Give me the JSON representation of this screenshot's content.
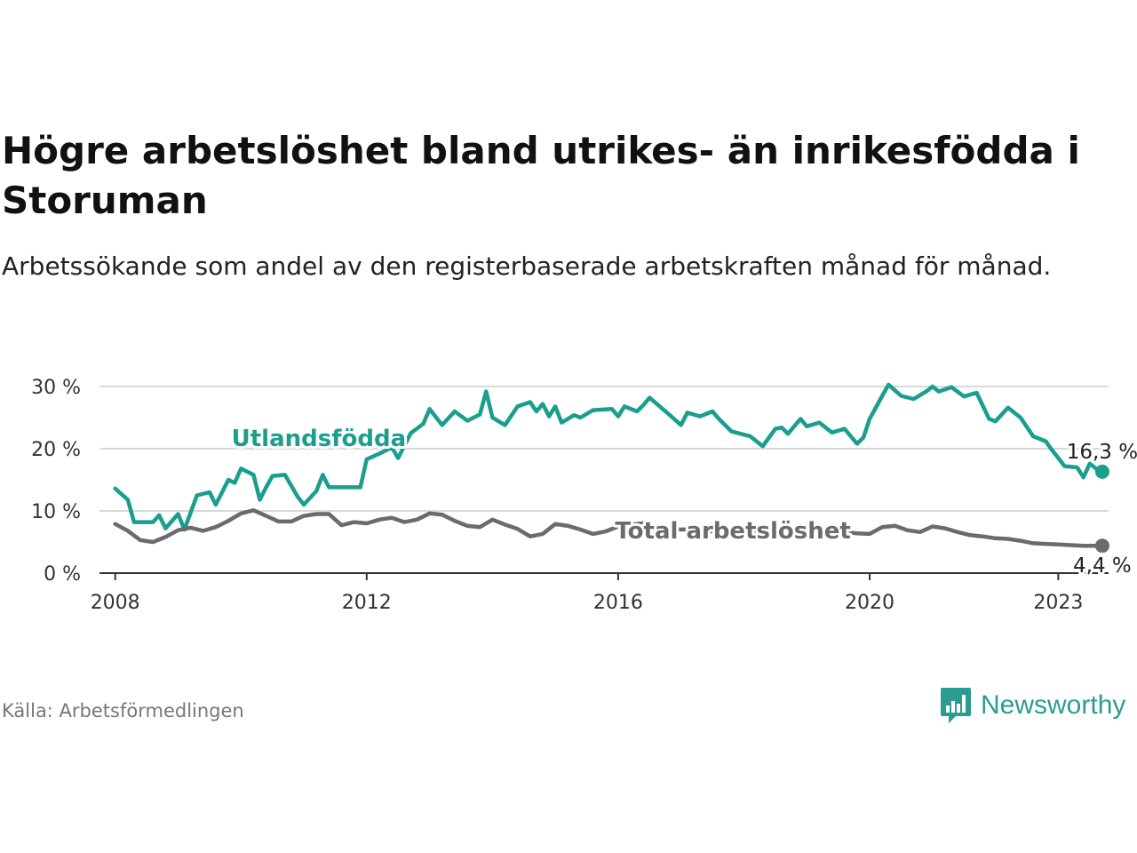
{
  "header": {
    "title": "Högre arbetslöshet bland utrikes- än inrikesfödda i Storuman",
    "subtitle": "Arbetssökande som andel av den registerbaserade arbetskraften månad för månad."
  },
  "footer": {
    "source": "Källa: Arbetsförmedlingen",
    "brand": "Newsworthy"
  },
  "colors": {
    "utlandsfodda": "#1a9e8e",
    "total": "#6b6a6e",
    "grid": "#d9d9d9",
    "axis": "#333333",
    "brand": "#2a9d8f"
  },
  "chart_data": {
    "type": "line",
    "title": "Högre arbetslöshet bland utrikes- än inrikesfödda i Storuman",
    "xlabel": "",
    "ylabel": "",
    "xlim": [
      2007.75,
      2023.8
    ],
    "ylim": [
      0,
      30
    ],
    "x_ticks": [
      2008,
      2012,
      2016,
      2020,
      2023
    ],
    "x_tick_labels": [
      "2008",
      "2012",
      "2016",
      "2020",
      "2023"
    ],
    "y_ticks": [
      0,
      10,
      20,
      30
    ],
    "y_tick_labels": [
      "0 %",
      "10 %",
      "20 %",
      "30 %"
    ],
    "grid": true,
    "series": [
      {
        "name": "Utlandsfödda",
        "color": "#1a9e8e",
        "end_label": "16,3 %",
        "points": [
          [
            2008.0,
            13.6
          ],
          [
            2008.2,
            11.8
          ],
          [
            2008.3,
            8.2
          ],
          [
            2008.6,
            8.2
          ],
          [
            2008.7,
            9.3
          ],
          [
            2008.8,
            7.2
          ],
          [
            2009.0,
            9.5
          ],
          [
            2009.1,
            7.0
          ],
          [
            2009.3,
            12.5
          ],
          [
            2009.5,
            13.0
          ],
          [
            2009.6,
            11.0
          ],
          [
            2009.8,
            15.0
          ],
          [
            2009.9,
            14.5
          ],
          [
            2010.0,
            16.8
          ],
          [
            2010.2,
            15.8
          ],
          [
            2010.3,
            11.8
          ],
          [
            2010.4,
            13.8
          ],
          [
            2010.5,
            15.6
          ],
          [
            2010.7,
            15.8
          ],
          [
            2010.9,
            12.3
          ],
          [
            2011.0,
            11.0
          ],
          [
            2011.2,
            13.2
          ],
          [
            2011.3,
            15.8
          ],
          [
            2011.4,
            13.8
          ],
          [
            2011.9,
            13.8
          ],
          [
            2012.0,
            18.3
          ],
          [
            2012.2,
            19.2
          ],
          [
            2012.4,
            20.2
          ],
          [
            2012.5,
            18.5
          ],
          [
            2012.6,
            20.5
          ],
          [
            2012.7,
            22.5
          ],
          [
            2012.9,
            24.0
          ],
          [
            2013.0,
            26.4
          ],
          [
            2013.2,
            23.8
          ],
          [
            2013.4,
            26.0
          ],
          [
            2013.6,
            24.5
          ],
          [
            2013.8,
            25.5
          ],
          [
            2013.9,
            29.2
          ],
          [
            2014.0,
            25.0
          ],
          [
            2014.2,
            23.8
          ],
          [
            2014.4,
            26.8
          ],
          [
            2014.6,
            27.5
          ],
          [
            2014.7,
            26.0
          ],
          [
            2014.8,
            27.2
          ],
          [
            2014.9,
            25.2
          ],
          [
            2015.0,
            26.8
          ],
          [
            2015.1,
            24.2
          ],
          [
            2015.3,
            25.4
          ],
          [
            2015.4,
            25.0
          ],
          [
            2015.6,
            26.2
          ],
          [
            2015.9,
            26.4
          ],
          [
            2016.0,
            25.2
          ],
          [
            2016.1,
            26.8
          ],
          [
            2016.3,
            26.0
          ],
          [
            2016.4,
            27.0
          ],
          [
            2016.5,
            28.2
          ],
          [
            2016.8,
            25.6
          ],
          [
            2017.0,
            23.8
          ],
          [
            2017.1,
            25.8
          ],
          [
            2017.3,
            25.2
          ],
          [
            2017.5,
            26.0
          ],
          [
            2017.6,
            24.8
          ],
          [
            2017.8,
            22.8
          ],
          [
            2018.1,
            22.0
          ],
          [
            2018.3,
            20.4
          ],
          [
            2018.5,
            23.2
          ],
          [
            2018.6,
            23.4
          ],
          [
            2018.7,
            22.4
          ],
          [
            2018.9,
            24.8
          ],
          [
            2019.0,
            23.6
          ],
          [
            2019.2,
            24.2
          ],
          [
            2019.4,
            22.6
          ],
          [
            2019.6,
            23.2
          ],
          [
            2019.8,
            20.8
          ],
          [
            2019.9,
            21.8
          ],
          [
            2020.0,
            24.8
          ],
          [
            2020.2,
            28.5
          ],
          [
            2020.3,
            30.3
          ],
          [
            2020.5,
            28.5
          ],
          [
            2020.7,
            28.0
          ],
          [
            2020.9,
            29.2
          ],
          [
            2021.0,
            30.0
          ],
          [
            2021.1,
            29.2
          ],
          [
            2021.3,
            29.9
          ],
          [
            2021.5,
            28.4
          ],
          [
            2021.7,
            29.0
          ],
          [
            2021.9,
            24.8
          ],
          [
            2022.0,
            24.4
          ],
          [
            2022.2,
            26.6
          ],
          [
            2022.4,
            25.0
          ],
          [
            2022.6,
            22.0
          ],
          [
            2022.8,
            21.2
          ],
          [
            2022.9,
            19.8
          ],
          [
            2023.0,
            18.5
          ],
          [
            2023.1,
            17.2
          ],
          [
            2023.3,
            17.0
          ],
          [
            2023.4,
            15.4
          ],
          [
            2023.5,
            17.6
          ],
          [
            2023.6,
            16.8
          ],
          [
            2023.7,
            16.3
          ]
        ]
      },
      {
        "name": "Total arbetslöshet",
        "color": "#6b6a6e",
        "end_label": "4,4 %",
        "points": [
          [
            2008.0,
            7.9
          ],
          [
            2008.2,
            6.8
          ],
          [
            2008.4,
            5.3
          ],
          [
            2008.6,
            5.0
          ],
          [
            2008.8,
            5.8
          ],
          [
            2009.0,
            6.9
          ],
          [
            2009.2,
            7.3
          ],
          [
            2009.4,
            6.8
          ],
          [
            2009.6,
            7.4
          ],
          [
            2009.8,
            8.4
          ],
          [
            2010.0,
            9.6
          ],
          [
            2010.2,
            10.1
          ],
          [
            2010.4,
            9.2
          ],
          [
            2010.6,
            8.3
          ],
          [
            2010.8,
            8.3
          ],
          [
            2011.0,
            9.2
          ],
          [
            2011.2,
            9.5
          ],
          [
            2011.4,
            9.5
          ],
          [
            2011.6,
            7.7
          ],
          [
            2011.8,
            8.2
          ],
          [
            2012.0,
            8.0
          ],
          [
            2012.2,
            8.6
          ],
          [
            2012.4,
            8.9
          ],
          [
            2012.6,
            8.2
          ],
          [
            2012.8,
            8.6
          ],
          [
            2013.0,
            9.6
          ],
          [
            2013.2,
            9.4
          ],
          [
            2013.4,
            8.4
          ],
          [
            2013.6,
            7.6
          ],
          [
            2013.8,
            7.4
          ],
          [
            2014.0,
            8.6
          ],
          [
            2014.2,
            7.8
          ],
          [
            2014.4,
            7.1
          ],
          [
            2014.6,
            5.9
          ],
          [
            2014.8,
            6.3
          ],
          [
            2015.0,
            7.9
          ],
          [
            2015.2,
            7.6
          ],
          [
            2015.4,
            7.0
          ],
          [
            2015.6,
            6.3
          ],
          [
            2015.8,
            6.7
          ],
          [
            2016.0,
            7.5
          ],
          [
            2016.2,
            7.8
          ],
          [
            2016.4,
            8.0
          ],
          [
            2016.6,
            7.6
          ],
          [
            2016.8,
            7.2
          ],
          [
            2017.0,
            7.0
          ],
          [
            2017.2,
            7.1
          ],
          [
            2017.4,
            6.8
          ],
          [
            2017.6,
            6.6
          ],
          [
            2017.8,
            6.4
          ],
          [
            2018.0,
            6.6
          ],
          [
            2018.2,
            6.5
          ],
          [
            2018.4,
            6.8
          ],
          [
            2018.6,
            6.9
          ],
          [
            2018.8,
            7.0
          ],
          [
            2019.0,
            6.8
          ],
          [
            2019.2,
            6.7
          ],
          [
            2019.4,
            6.5
          ],
          [
            2019.6,
            6.6
          ],
          [
            2019.8,
            6.4
          ],
          [
            2020.0,
            6.3
          ],
          [
            2020.2,
            7.4
          ],
          [
            2020.4,
            7.6
          ],
          [
            2020.6,
            6.9
          ],
          [
            2020.8,
            6.6
          ],
          [
            2021.0,
            7.5
          ],
          [
            2021.2,
            7.2
          ],
          [
            2021.4,
            6.6
          ],
          [
            2021.6,
            6.1
          ],
          [
            2021.8,
            5.9
          ],
          [
            2022.0,
            5.6
          ],
          [
            2022.2,
            5.5
          ],
          [
            2022.4,
            5.2
          ],
          [
            2022.6,
            4.8
          ],
          [
            2022.8,
            4.7
          ],
          [
            2023.0,
            4.6
          ],
          [
            2023.2,
            4.5
          ],
          [
            2023.4,
            4.4
          ],
          [
            2023.7,
            4.4
          ]
        ]
      }
    ]
  }
}
